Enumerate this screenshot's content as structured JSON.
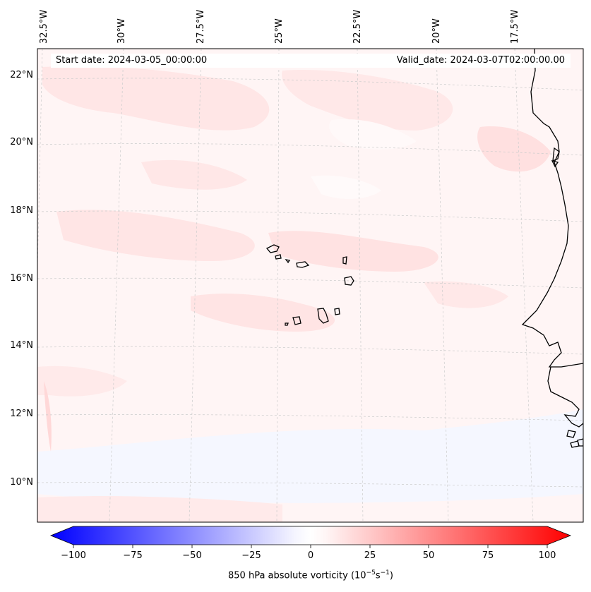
{
  "map": {
    "start_date": "Start date: 2024-03-05_00:00:00",
    "valid_date": "Valid_date: 2024-03-07T02:00:00.00",
    "lon_labels": [
      "32.5°W",
      "30°W",
      "27.5°W",
      "25°W",
      "22.5°W",
      "20°W",
      "17.5°W"
    ],
    "lat_labels": [
      "22°N",
      "20°N",
      "18°N",
      "16°N",
      "14°N",
      "12°N",
      "10°N"
    ],
    "field_colors": {
      "background": "#fff5f5",
      "light_red": "#ffe2e2",
      "faint_red": "#ffeaea",
      "light_blue": "#f5f7ff",
      "coast": "#000000"
    }
  },
  "colorbar": {
    "label_prefix": "850 hPa absolute vorticity (10",
    "label_exp1": "−5",
    "label_mid": "s",
    "label_exp2": "−1",
    "label_suffix": ")",
    "ticks": [
      "−100",
      "−75",
      "−50",
      "−25",
      "0",
      "25",
      "50",
      "75",
      "100"
    ],
    "min_color": "#0000ff",
    "max_color": "#ff0000"
  }
}
